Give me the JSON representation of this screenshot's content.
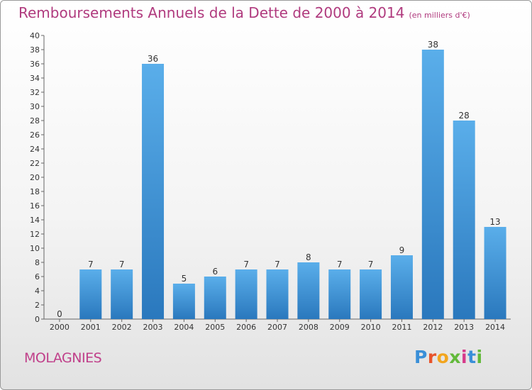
{
  "header": {
    "title": "Remboursements Annuels de la Dette de 2000 à 2014",
    "subtitle": "(en milliers d'€)"
  },
  "footer": {
    "commune": "MOLAGNIES",
    "logo": {
      "letters": [
        "P",
        "r",
        "o",
        "x",
        "i",
        "t",
        "i"
      ],
      "colors": [
        "#3a8fd8",
        "#e8542b",
        "#f2a51e",
        "#62b93a",
        "#d63a8a",
        "#3a8fd8",
        "#62b93a"
      ]
    }
  },
  "chart_data": {
    "type": "bar",
    "title": "Remboursements Annuels de la Dette de 2000 à 2014",
    "subtitle": "(en milliers d'€)",
    "xlabel": "",
    "ylabel": "",
    "categories": [
      "2000",
      "2001",
      "2002",
      "2003",
      "2004",
      "2005",
      "2006",
      "2007",
      "2008",
      "2009",
      "2010",
      "2011",
      "2012",
      "2013",
      "2014"
    ],
    "values": [
      0,
      7,
      7,
      36,
      5,
      6,
      7,
      7,
      8,
      7,
      7,
      9,
      38,
      28,
      13
    ],
    "ylim": [
      0,
      40
    ],
    "yticks": [
      0,
      2,
      4,
      6,
      8,
      10,
      12,
      14,
      16,
      18,
      20,
      22,
      24,
      26,
      28,
      30,
      32,
      34,
      36,
      38,
      40
    ],
    "grid": false,
    "legend": "none",
    "bar_color_light": "#5aaeea",
    "bar_color_dark": "#2a78bd"
  }
}
